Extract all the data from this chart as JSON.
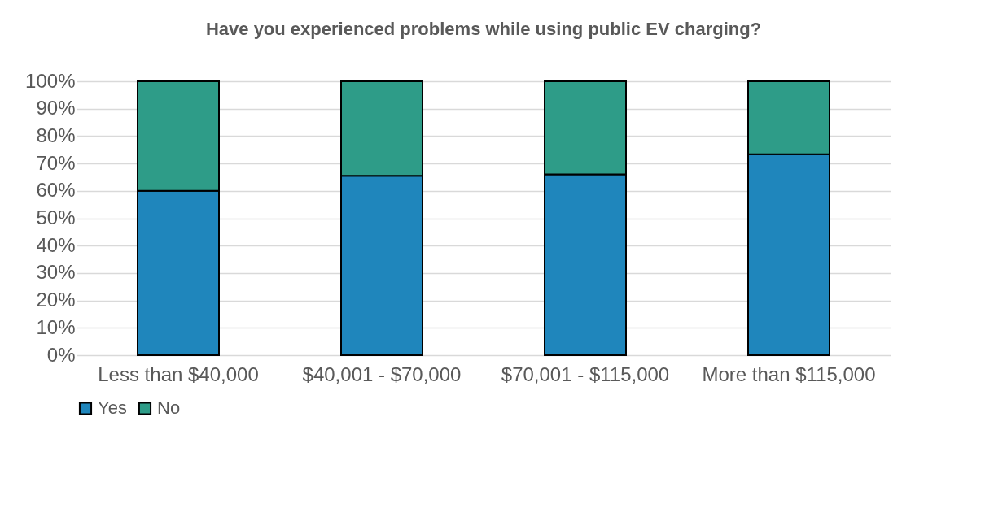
{
  "chart_data": {
    "type": "bar",
    "title": "Have you experienced problems while using public EV charging?",
    "categories": [
      "Less than $40,000",
      "$40,001 - $70,000",
      "$70,001 - $115,000",
      "More than $115,000"
    ],
    "series": [
      {
        "name": "Yes",
        "color": "#1f86bc",
        "values": [
          60,
          65.5,
          66,
          73.4
        ]
      },
      {
        "name": "No",
        "color": "#2e9c88",
        "values": [
          40,
          34.5,
          34,
          26.6
        ]
      }
    ],
    "stacked": true,
    "ylim": [
      0,
      100
    ],
    "yticks": [
      {
        "value": 0,
        "label": "0%"
      },
      {
        "value": 10,
        "label": "10%"
      },
      {
        "value": 20,
        "label": "20%"
      },
      {
        "value": 30,
        "label": "30%"
      },
      {
        "value": 40,
        "label": "40%"
      },
      {
        "value": 50,
        "label": "50%"
      },
      {
        "value": 60,
        "label": "60%"
      },
      {
        "value": 70,
        "label": "70%"
      },
      {
        "value": 80,
        "label": "80%"
      },
      {
        "value": 90,
        "label": "90%"
      },
      {
        "value": 100,
        "label": "100%"
      }
    ],
    "grid": "y",
    "legend": "bottom"
  }
}
